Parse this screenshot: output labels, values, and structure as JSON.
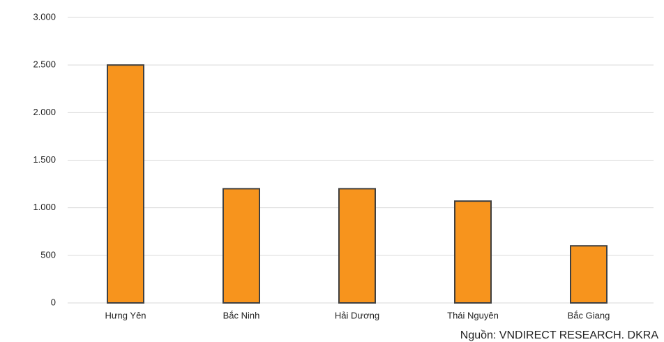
{
  "chart_data": {
    "type": "bar",
    "categories": [
      "Hưng Yên",
      "Bắc Ninh",
      "Hải Dương",
      "Thái Nguyên",
      "Bắc Giang"
    ],
    "values": [
      2500,
      1200,
      1200,
      1070,
      600
    ],
    "color": "#f7941d",
    "ylim": [
      0,
      3000
    ],
    "yticks": [
      0,
      500,
      {
        "value": 1000,
        "label": "1.000"
      },
      {
        "value": 1500,
        "label": "1.500"
      },
      {
        "value": 2000,
        "label": "2.000"
      },
      {
        "value": 2500,
        "label": "2.500"
      },
      {
        "value": 3000,
        "label": "3.000"
      }
    ],
    "grid": true,
    "source": "Nguồn: VNDIRECT RESEARCH. DKRA"
  }
}
